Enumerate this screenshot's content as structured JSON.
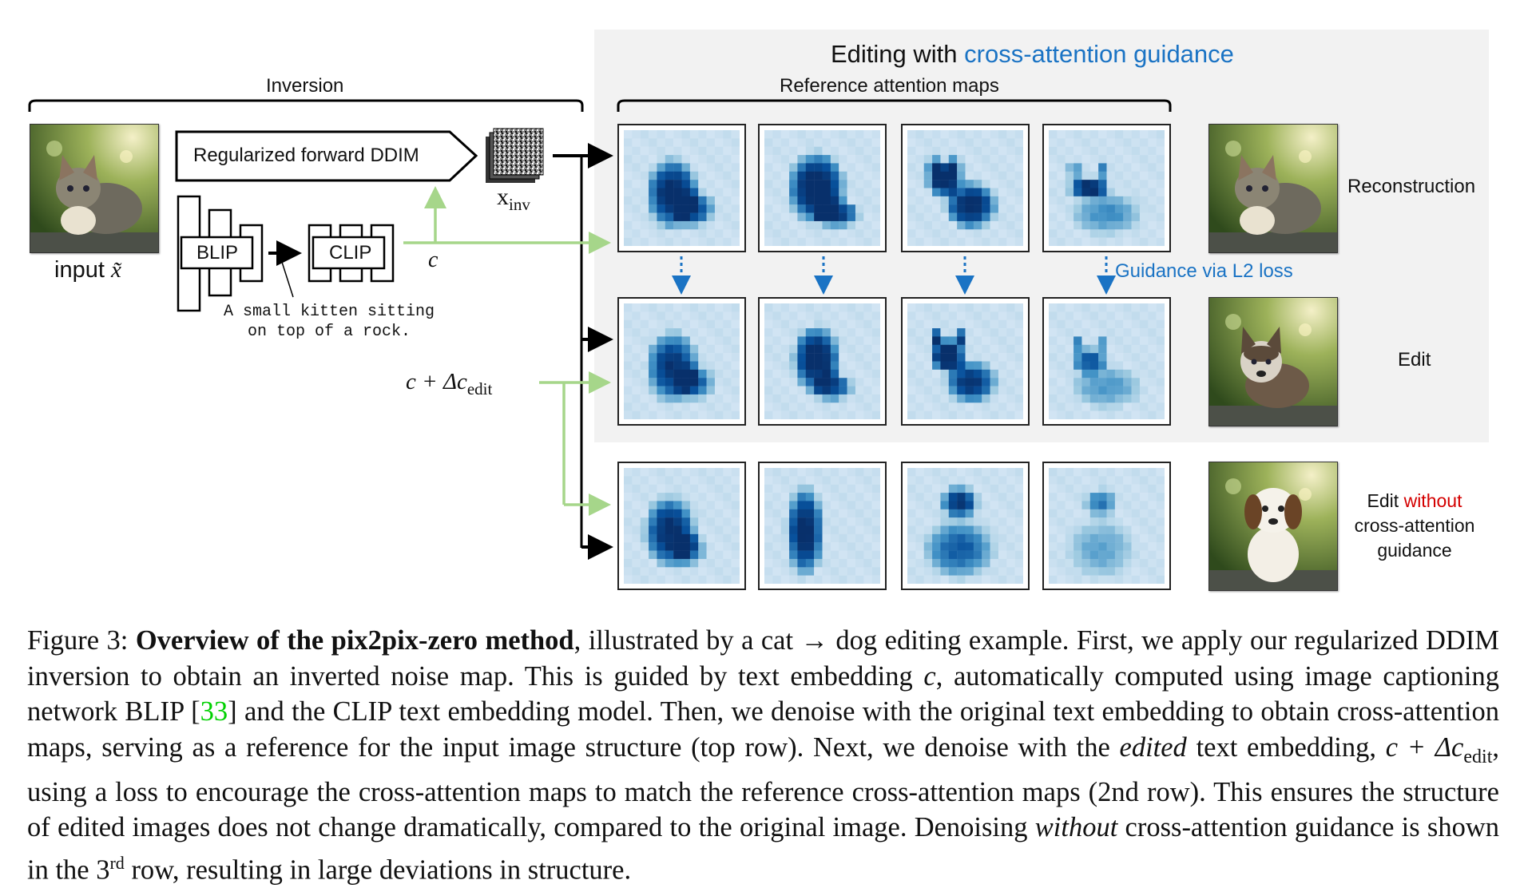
{
  "figure": {
    "title_prefix": "Editing with ",
    "title_highlight": "cross-attention guidance",
    "inversion_label": "Inversion",
    "reference_label": "Reference attention maps",
    "input_label": "input",
    "input_symbol": "x̃",
    "ddim_label": "Regularized forward DDIM",
    "xinv_label": "x",
    "xinv_sub": "inv",
    "blip_label": "BLIP",
    "clip_label": "CLIP",
    "caption_line1": "A small kitten sitting",
    "caption_line2": "on top of a rock.",
    "c_label": "c",
    "cedit_label": "c + Δc",
    "cedit_sub": "edit",
    "guidance_label": "Guidance via L2 loss",
    "rows": [
      {
        "label": "Reconstruction"
      },
      {
        "label": "Edit"
      },
      {
        "label_prefix": "Edit ",
        "label_highlight": "without",
        "label_line2": "cross-attention",
        "label_line3": "guidance"
      }
    ],
    "colors": {
      "guidance_blue": "#1a73c4",
      "green_arrow": "#a6d68a",
      "highlight_red": "#d40000",
      "panel_bg": "#f2f2f2"
    }
  },
  "caption": {
    "p1": "Figure 3: ",
    "bold": "Overview of the pix2pix-zero method",
    "p2": ", illustrated by a cat → dog editing example. First, we apply our regularized DDIM inversion to obtain an inverted noise map. This is guided by text embedding ",
    "c1": "c",
    "p3": ", automatically computed using image captioning network BLIP [",
    "cite": "33",
    "p4": "] and the CLIP text embedding model.  Then, we denoise with the original text embedding to obtain cross-attention maps, serving as a reference for the input image structure (top row).  Next, we denoise with the ",
    "edited": "edited",
    "p5": " text embedding, ",
    "math": "c + Δc",
    "math_sub": "edit",
    "p6": ", using a loss to encourage the cross-attention maps to match the reference cross-attention maps (2nd row). This ensures the structure of edited images does not change dramatically, compared to the original image. Denoising ",
    "without": "without",
    "p7": " cross-attention guidance is shown in the 3",
    "sup": "rd",
    "p8": " row, resulting in large deviations in structure."
  }
}
